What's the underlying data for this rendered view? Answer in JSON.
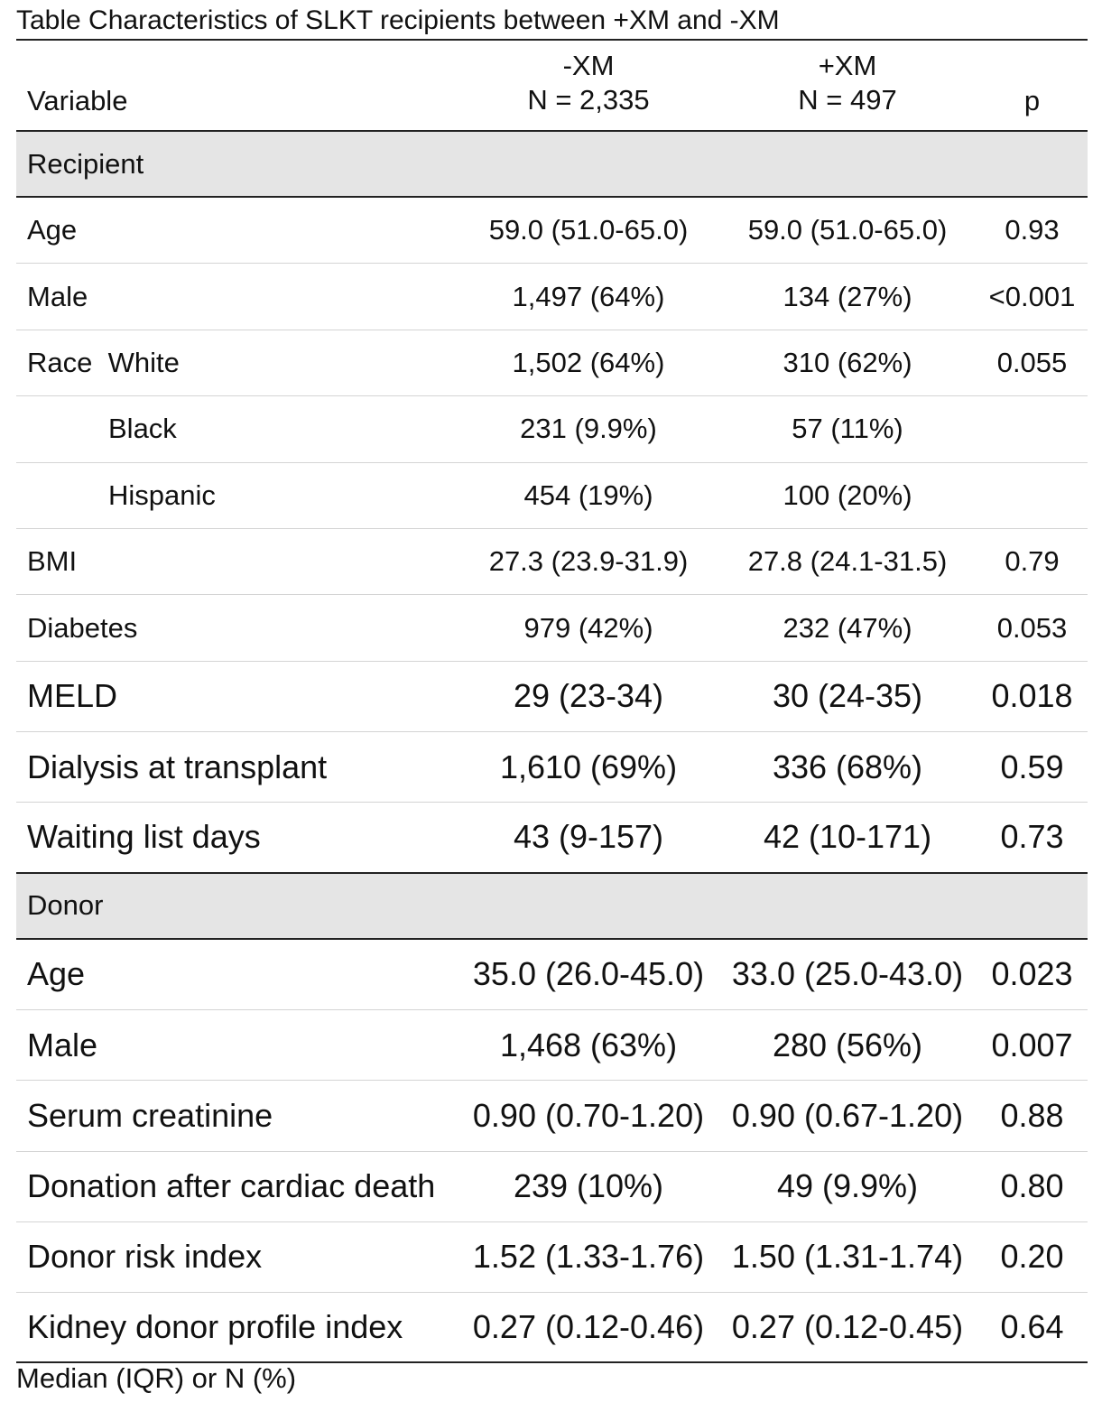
{
  "caption": "Table Characteristics of SLKT recipients between +XM and -XM",
  "header": {
    "variable": "Variable",
    "neg_group": "-XM",
    "neg_n": "N = 2,335",
    "pos_group": "+XM",
    "pos_n": "N = 497",
    "p": "p"
  },
  "recipient": {
    "label": "Recipient",
    "rows": [
      {
        "var": "Age",
        "neg": "59.0 (51.0-65.0)",
        "pos": "59.0 (51.0-65.0)",
        "p": "0.93"
      },
      {
        "var": "Male",
        "neg": "1,497 (64%)",
        "pos": "134 (27%)",
        "p": "<0.001"
      },
      {
        "var": "Race  White",
        "neg": "1,502 (64%)",
        "pos": "310 (62%)",
        "p": "0.055"
      },
      {
        "var": "Black",
        "neg": "231 (9.9%)",
        "pos": "57 (11%)",
        "p": ""
      },
      {
        "var": "Hispanic",
        "neg": "454 (19%)",
        "pos": "100 (20%)",
        "p": ""
      },
      {
        "var": "BMI",
        "neg": "27.3 (23.9-31.9)",
        "pos": "27.8 (24.1-31.5)",
        "p": "0.79"
      },
      {
        "var": "Diabetes",
        "neg": "979 (42%)",
        "pos": "232 (47%)",
        "p": "0.053"
      },
      {
        "var": "MELD",
        "neg": "29 (23-34)",
        "pos": "30 (24-35)",
        "p": "0.018"
      },
      {
        "var": "Dialysis at transplant",
        "neg": "1,610 (69%)",
        "pos": "336 (68%)",
        "p": "0.59"
      },
      {
        "var": "Waiting list days",
        "neg": "43 (9-157)",
        "pos": "42 (10-171)",
        "p": "0.73"
      }
    ]
  },
  "donor": {
    "label": "Donor",
    "rows": [
      {
        "var": "Age",
        "neg": "35.0 (26.0-45.0)",
        "pos": "33.0 (25.0-43.0)",
        "p": "0.023"
      },
      {
        "var": "Male",
        "neg": "1,468 (63%)",
        "pos": "280 (56%)",
        "p": "0.007"
      },
      {
        "var": "Serum creatinine",
        "neg": "0.90 (0.70-1.20)",
        "pos": "0.90 (0.67-1.20)",
        "p": "0.88"
      },
      {
        "var": "Donation after cardiac death",
        "neg": "239 (10%)",
        "pos": "49 (9.9%)",
        "p": "0.80"
      },
      {
        "var": "Donor risk index",
        "neg": "1.52 (1.33-1.76)",
        "pos": "1.50 (1.31-1.74)",
        "p": "0.20"
      },
      {
        "var": "Kidney donor profile index",
        "neg": "0.27 (0.12-0.46)",
        "pos": "0.27 (0.12-0.45)",
        "p": "0.64"
      }
    ]
  },
  "footnote": "Median (IQR) or N (%)"
}
